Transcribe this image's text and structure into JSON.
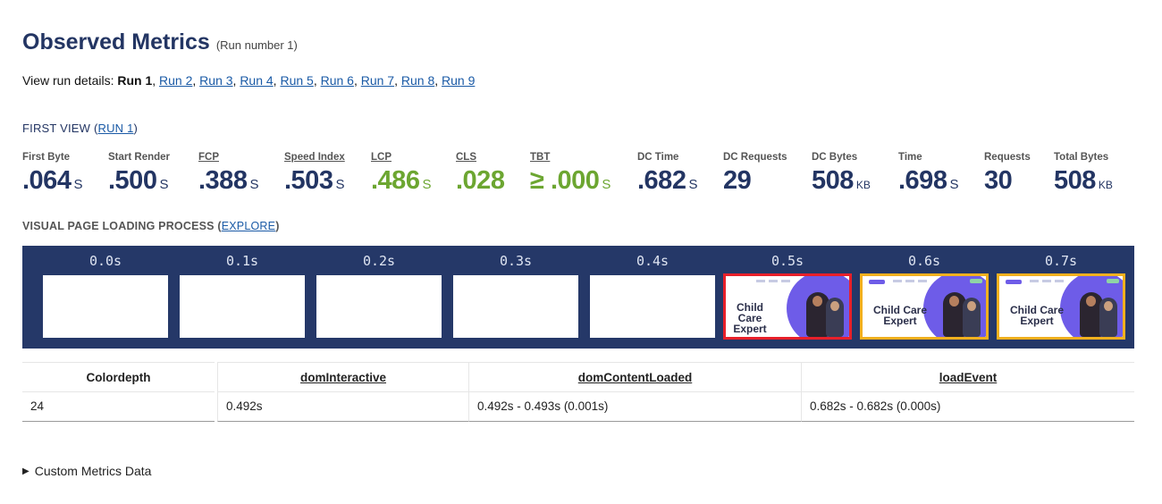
{
  "header": {
    "title": "Observed Metrics",
    "run_note": "(Run number 1)"
  },
  "run_details": {
    "label": "View run details: ",
    "current": "Run 1",
    "links": [
      "Run 2",
      "Run 3",
      "Run 4",
      "Run 5",
      "Run 6",
      "Run 7",
      "Run 8",
      "Run 9"
    ]
  },
  "first_view": {
    "label": "FIRST VIEW (",
    "link": "RUN 1",
    "close": ")"
  },
  "metrics": [
    {
      "label": "First Byte",
      "value": ".064",
      "unit": "S",
      "good": false,
      "underline": false
    },
    {
      "label": "Start Render",
      "value": ".500",
      "unit": "S",
      "good": false,
      "underline": false
    },
    {
      "label": "FCP",
      "value": ".388",
      "unit": "S",
      "good": false,
      "underline": true
    },
    {
      "label": "Speed Index",
      "value": ".503",
      "unit": "S",
      "good": false,
      "underline": true
    },
    {
      "label": "LCP",
      "value": ".486",
      "unit": "S",
      "good": true,
      "underline": true
    },
    {
      "label": "CLS",
      "value": ".028",
      "unit": "",
      "good": true,
      "underline": true
    },
    {
      "label": "TBT",
      "value": "≥ .000",
      "unit": "S",
      "good": true,
      "underline": true
    },
    {
      "label": "DC Time",
      "value": ".682",
      "unit": "S",
      "good": false,
      "underline": false
    },
    {
      "label": "DC Requests",
      "value": "29",
      "unit": "",
      "good": false,
      "underline": false
    },
    {
      "label": "DC Bytes",
      "value": "508",
      "unit": "KB",
      "good": false,
      "underline": false
    },
    {
      "label": "Time",
      "value": ".698",
      "unit": "S",
      "good": false,
      "underline": false
    },
    {
      "label": "Requests",
      "value": "30",
      "unit": "",
      "good": false,
      "underline": false
    },
    {
      "label": "Total Bytes",
      "value": "508",
      "unit": "KB",
      "good": false,
      "underline": false
    }
  ],
  "visual_progress": {
    "label": "VISUAL PAGE LOADING PROCESS (",
    "link": "EXPLORE",
    "close": ")"
  },
  "filmstrip": {
    "frames": [
      {
        "time": "0.0s",
        "state": "blank"
      },
      {
        "time": "0.1s",
        "state": "blank"
      },
      {
        "time": "0.2s",
        "state": "blank"
      },
      {
        "time": "0.3s",
        "state": "blank"
      },
      {
        "time": "0.4s",
        "state": "blank"
      },
      {
        "time": "0.5s",
        "state": "red",
        "headline": "Child Care Expert"
      },
      {
        "time": "0.6s",
        "state": "yellow",
        "headline": "Child Care Expert"
      },
      {
        "time": "0.7s",
        "state": "yellow",
        "headline": "Child Care Expert"
      }
    ],
    "colors": {
      "background": "#253868",
      "changed": "#e8202a",
      "partial": "#f2b01e"
    }
  },
  "timing_table": {
    "columns": [
      {
        "header": "Colordepth",
        "value": "24"
      },
      {
        "header": "domInteractive",
        "value": "0.492s"
      },
      {
        "header": "domContentLoaded",
        "value": "0.492s - 0.493s (0.001s)"
      },
      {
        "header": "loadEvent",
        "value": "0.682s - 0.682s (0.000s)"
      }
    ]
  },
  "custom_metrics": {
    "label": "Custom Metrics Data"
  },
  "colors": {
    "title": "#233563",
    "link": "#1a5aa6",
    "good": "#6ca631"
  }
}
